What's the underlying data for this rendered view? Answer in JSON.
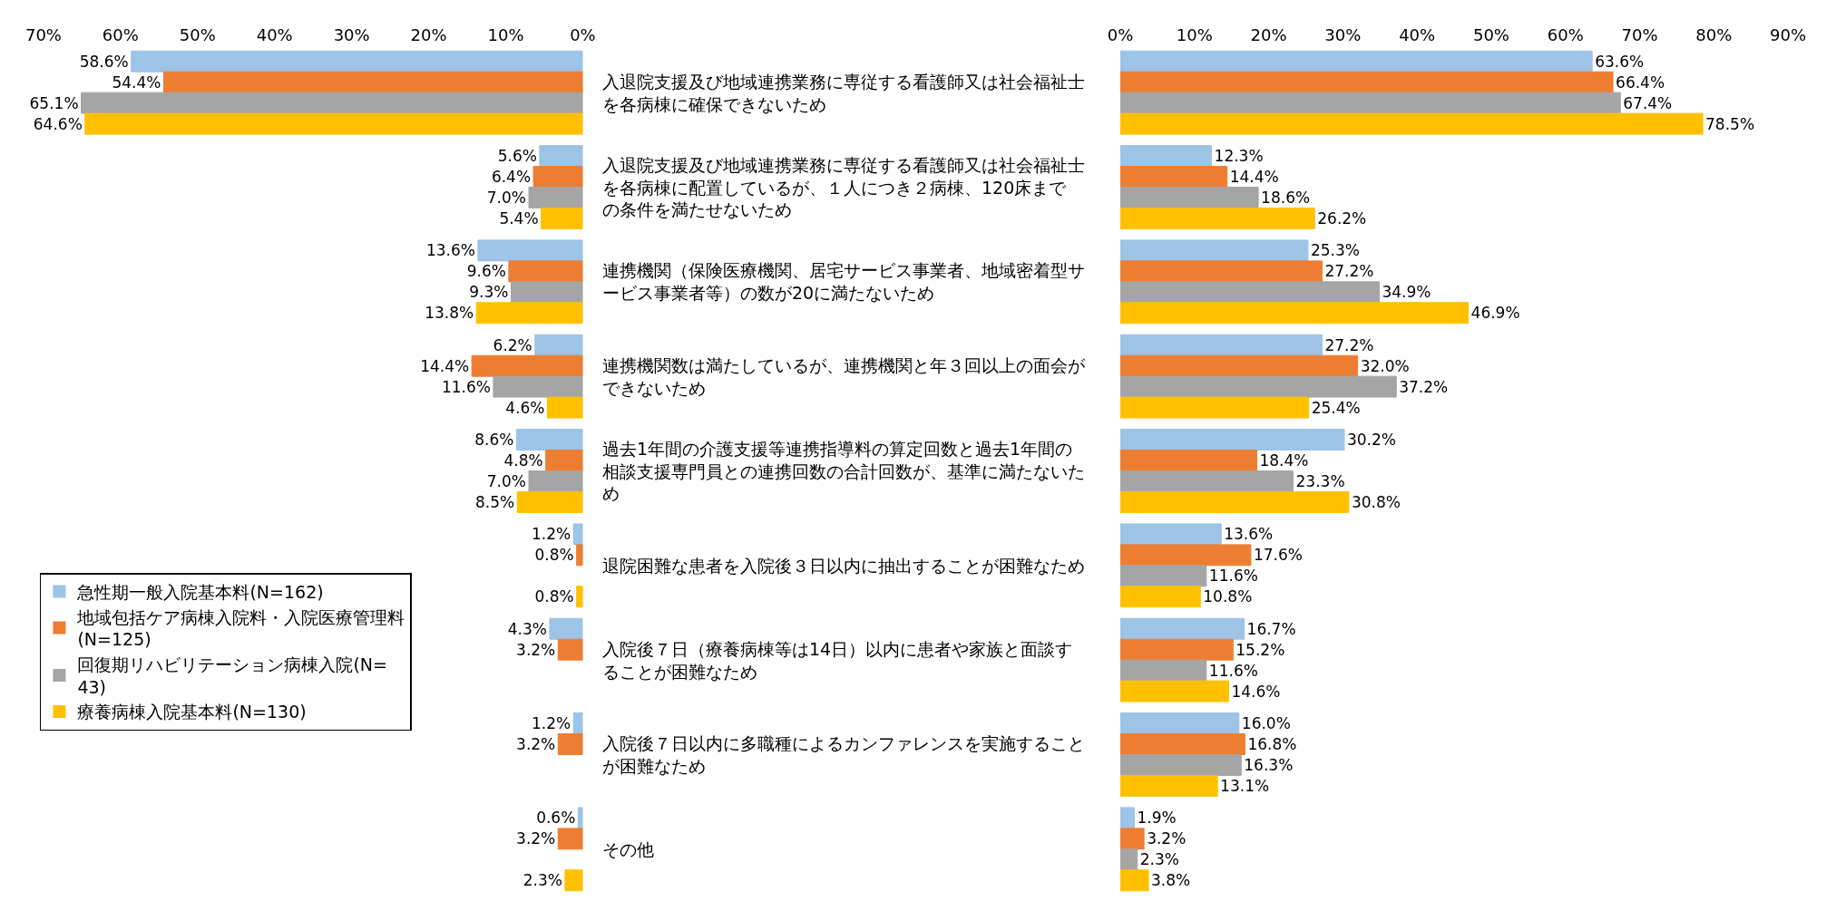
{
  "chart_data": [
    {
      "type": "bar",
      "orientation": "horizontal",
      "tick_labels": "x",
      "legend": "bottom left",
      "categories": [
        "入退院支援及び地域連携業務に専従する看護師又は社会福祉士を各病棟に確保できないため",
        "入退院支援及び地域連携業務に専従する看護師又は社会福祉士を各病棟に配置しているが、１人につき２病棟、120床までの条件を満たせないため",
        "連携機関（保険医療機関、居宅サービス事業者、地域密着型サービス事業者等）の数が20に満たないため",
        "連携機関数は満たしているが、連携機関と年３回以上の面会ができないため",
        "過去1年間の介護支援等連携指導料の算定回数と過去1年間の相談支援専門員との連携回数の合計回数が、基準に満たないため",
        "退院困難な患者を入院後３日以内に抽出することが困難なため",
        "入院後７日（療養病棟等は14日）以内に患者や家族と面談することが困難なため",
        "入院後７日以内に多職種によるカンファレンスを実施することが困難なため",
        "その他"
      ],
      "xlim": [
        70,
        0
      ],
      "xticks": [
        {
          "value": 70,
          "label": "70%"
        },
        {
          "value": 60,
          "label": "60%"
        },
        {
          "value": 50,
          "label": "50%"
        },
        {
          "value": 40,
          "label": "40%"
        },
        {
          "value": 30,
          "label": "30%"
        },
        {
          "value": 20,
          "label": "20%"
        },
        {
          "value": 10,
          "label": "10%"
        },
        {
          "value": 0,
          "label": "0%"
        }
      ],
      "series": [
        {
          "name": "急性期一般入院基本料(N=162)",
          "color": "#9dc3e6",
          "values": [
            58.6,
            5.6,
            13.6,
            6.2,
            8.6,
            1.2,
            4.3,
            1.2,
            0.6
          ],
          "value_labels": [
            "58.6%",
            "5.6%",
            "13.6%",
            "6.2%",
            "8.6%",
            "1.2%",
            "4.3%",
            "1.2%",
            "0.6%"
          ]
        },
        {
          "name": "地域包括ケア病棟入院料・入院医療管理料(N=125)",
          "color": "#ed7d31",
          "values": [
            54.4,
            6.4,
            9.6,
            14.4,
            4.8,
            0.8,
            3.2,
            3.2,
            3.2
          ],
          "value_labels": [
            "54.4%",
            "6.4%",
            "9.6%",
            "14.4%",
            "4.8%",
            "0.8%",
            "3.2%",
            "3.2%",
            "3.2%"
          ]
        },
        {
          "name": "回復期リハビリテーション病棟入院(N=43)",
          "color": "#a5a5a5",
          "values": [
            65.1,
            7.0,
            9.3,
            11.6,
            7.0,
            null,
            null,
            null,
            null
          ],
          "value_labels": [
            "65.1%",
            "7.0%",
            "9.3%",
            "11.6%",
            "7.0%",
            null,
            null,
            null,
            null
          ]
        },
        {
          "name": "療養病棟入院基本料(N=130)",
          "color": "#ffc000",
          "values": [
            64.6,
            5.4,
            13.8,
            4.6,
            8.5,
            0.8,
            null,
            null,
            2.3
          ],
          "value_labels": [
            "64.6%",
            "5.4%",
            "13.8%",
            "4.6%",
            "8.5%",
            "0.8%",
            null,
            null,
            "2.3%"
          ]
        }
      ]
    },
    {
      "type": "bar",
      "orientation": "horizontal",
      "categories": [
        "入退院支援及び地域連携業務に専従する看護師又は社会福祉士を各病棟に確保できないため",
        "入退院支援及び地域連携業務に専従する看護師又は社会福祉士を各病棟に配置しているが、１人につき２病棟、120床までの条件を満たせないため",
        "連携機関（保険医療機関、居宅サービス事業者、地域密着型サービス事業者等）の数が20に満たないため",
        "連携機関数は満たしているが、連携機関と年３回以上の面会ができないため",
        "過去1年間の介護支援等連携指導料の算定回数と過去1年間の相談支援専門員との連携回数の合計回数が、基準に満たないため",
        "退院困難な患者を入院後３日以内に抽出することが困難なため",
        "入院後７日（療養病棟等は14日）以内に患者や家族と面談することが困難なため",
        "入院後７日以内に多職種によるカンファレンスを実施することが困難なため",
        "その他"
      ],
      "xlim": [
        0,
        90
      ],
      "xticks": [
        {
          "value": 0,
          "label": "0%"
        },
        {
          "value": 10,
          "label": "10%"
        },
        {
          "value": 20,
          "label": "20%"
        },
        {
          "value": 30,
          "label": "30%"
        },
        {
          "value": 40,
          "label": "40%"
        },
        {
          "value": 50,
          "label": "50%"
        },
        {
          "value": 60,
          "label": "60%"
        },
        {
          "value": 70,
          "label": "70%"
        },
        {
          "value": 80,
          "label": "80%"
        },
        {
          "value": 90,
          "label": "90%"
        }
      ],
      "series": [
        {
          "color": "#9dc3e6",
          "values": [
            63.6,
            12.3,
            25.3,
            27.2,
            30.2,
            13.6,
            16.7,
            16.0,
            1.9
          ],
          "value_labels": [
            "63.6%",
            "12.3%",
            "25.3%",
            "27.2%",
            "30.2%",
            "13.6%",
            "16.7%",
            "16.0%",
            "1.9%"
          ]
        },
        {
          "color": "#ed7d31",
          "values": [
            66.4,
            14.4,
            27.2,
            32.0,
            18.4,
            17.6,
            15.2,
            16.8,
            3.2
          ],
          "value_labels": [
            "66.4%",
            "14.4%",
            "27.2%",
            "32.0%",
            "18.4%",
            "17.6%",
            "15.2%",
            "16.8%",
            "3.2%"
          ]
        },
        {
          "color": "#a5a5a5",
          "values": [
            67.4,
            18.6,
            34.9,
            37.2,
            23.3,
            11.6,
            11.6,
            16.3,
            2.3
          ],
          "value_labels": [
            "67.4%",
            "18.6%",
            "34.9%",
            "37.2%",
            "23.3%",
            "11.6%",
            "11.6%",
            "16.3%",
            "2.3%"
          ]
        },
        {
          "color": "#ffc000",
          "values": [
            78.5,
            26.2,
            46.9,
            25.4,
            30.8,
            10.8,
            14.6,
            13.1,
            3.8
          ],
          "value_labels": [
            "78.5%",
            "26.2%",
            "46.9%",
            "25.4%",
            "30.8%",
            "10.8%",
            "14.6%",
            "13.1%",
            "3.8%"
          ]
        }
      ]
    }
  ]
}
